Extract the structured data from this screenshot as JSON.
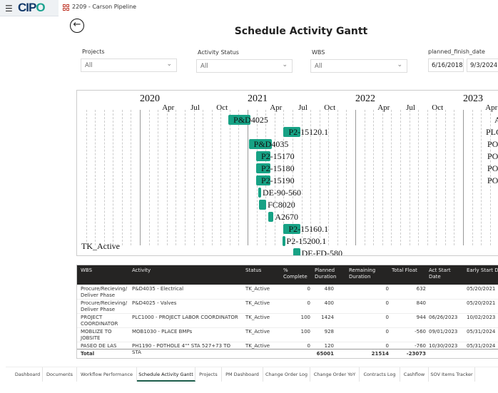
{
  "app": {
    "logo_text": "CIPO",
    "project_name": "2209 - Carson Pipeline"
  },
  "page": {
    "title": "Schedule Activity Gantt"
  },
  "filters": {
    "projects": {
      "label": "Projects",
      "value": "All"
    },
    "activity_status": {
      "label": "Activity Status",
      "value": "All"
    },
    "wbs": {
      "label": "WBS",
      "value": "All"
    },
    "planned_finish_date": {
      "label": "planned_finish_date",
      "start": "6/16/2018",
      "end": "9/3/2024"
    }
  },
  "chart_data": {
    "type": "gantt",
    "xlim": [
      "2019-06-01",
      "2023-05-01"
    ],
    "year_ticks": [
      "2020",
      "2021",
      "2022",
      "2023"
    ],
    "month_ticks": [
      "Apr",
      "Jul",
      "Oct"
    ],
    "bar_color": "#17a285",
    "group_label": "TK_Active",
    "tasks": [
      {
        "label": "P&D4025",
        "start": "2020-10-28",
        "end": "2021-01-10"
      },
      {
        "label": "P2-15120.1",
        "start": "2021-05-03",
        "end": "2021-06-28"
      },
      {
        "label": "P&D4035",
        "start": "2021-01-05",
        "end": "2021-03-25"
      },
      {
        "label": "P2-15170",
        "start": "2021-01-30",
        "end": "2021-03-20"
      },
      {
        "label": "P2-15180",
        "start": "2021-01-30",
        "end": "2021-03-20"
      },
      {
        "label": "P2-15190",
        "start": "2021-01-30",
        "end": "2021-03-20"
      },
      {
        "label": "DE-90-560",
        "start": "2021-02-06",
        "end": "2021-02-16"
      },
      {
        "label": "FC8020",
        "start": "2021-02-08",
        "end": "2021-03-05"
      },
      {
        "label": "A2670",
        "start": "2021-03-13",
        "end": "2021-03-30"
      },
      {
        "label": "P2-15160.1",
        "start": "2021-05-03",
        "end": "2021-06-28"
      },
      {
        "label": "P2-15200.1",
        "start": "2021-04-30",
        "end": "2021-05-08"
      },
      {
        "label": "DE-FD-580",
        "start": "2021-06-04",
        "end": "2021-06-28"
      }
    ],
    "edge_labels": [
      "A",
      "PLC",
      "PO",
      "PO",
      "PO",
      "PO"
    ]
  },
  "table": {
    "columns": [
      "WBS",
      "Activity",
      "Status",
      "% Complete",
      "Planned Duration",
      "Remaining Duration",
      "Total Float",
      "Act Start Date",
      "Early Start Date"
    ],
    "rows": [
      [
        "Procure/Recieving/ Deliver Phase",
        "P&D4035 - Electrical",
        "TK_Active",
        "0",
        "480",
        "0",
        "632",
        "",
        "05/20/2021"
      ],
      [
        "Procure/Recieving/ Deliver Phase",
        "P&D4025 - Valves",
        "TK_Active",
        "0",
        "400",
        "0",
        "840",
        "",
        "05/20/2021"
      ],
      [
        "PROJECT COORDINATOR",
        "PLC1000 - PROJECT LABOR COORDINATOR",
        "TK_Active",
        "100",
        "1424",
        "0",
        "944",
        "06/26/2023",
        "10/02/2023"
      ],
      [
        "MOBLIZE TO JOBSITE",
        "MOB1030 - PLACE BMPs",
        "TK_Active",
        "100",
        "928",
        "0",
        "-560",
        "09/01/2023",
        "05/31/2024"
      ],
      [
        "PASEO DE LAS",
        "PH1190 - POTHOLE 4\"\" STA 527+73 TO STA",
        "TK_Active",
        "0",
        "120",
        "0",
        "-760",
        "10/30/2023",
        "05/31/2024"
      ]
    ],
    "total": {
      "label": "Total",
      "planned": "65001",
      "remaining": "21514",
      "float": "-23073"
    }
  },
  "tabs": [
    "Dashboard",
    "Documents",
    "Workflow Performance",
    "Schedule Activity Gantt",
    "Projects",
    "PM Dashboard",
    "Change Order Log",
    "Change Order YoY",
    "Contracts Log",
    "Cashflow",
    "SOV Items Tracker"
  ],
  "active_tab": "Schedule Activity Gantt"
}
